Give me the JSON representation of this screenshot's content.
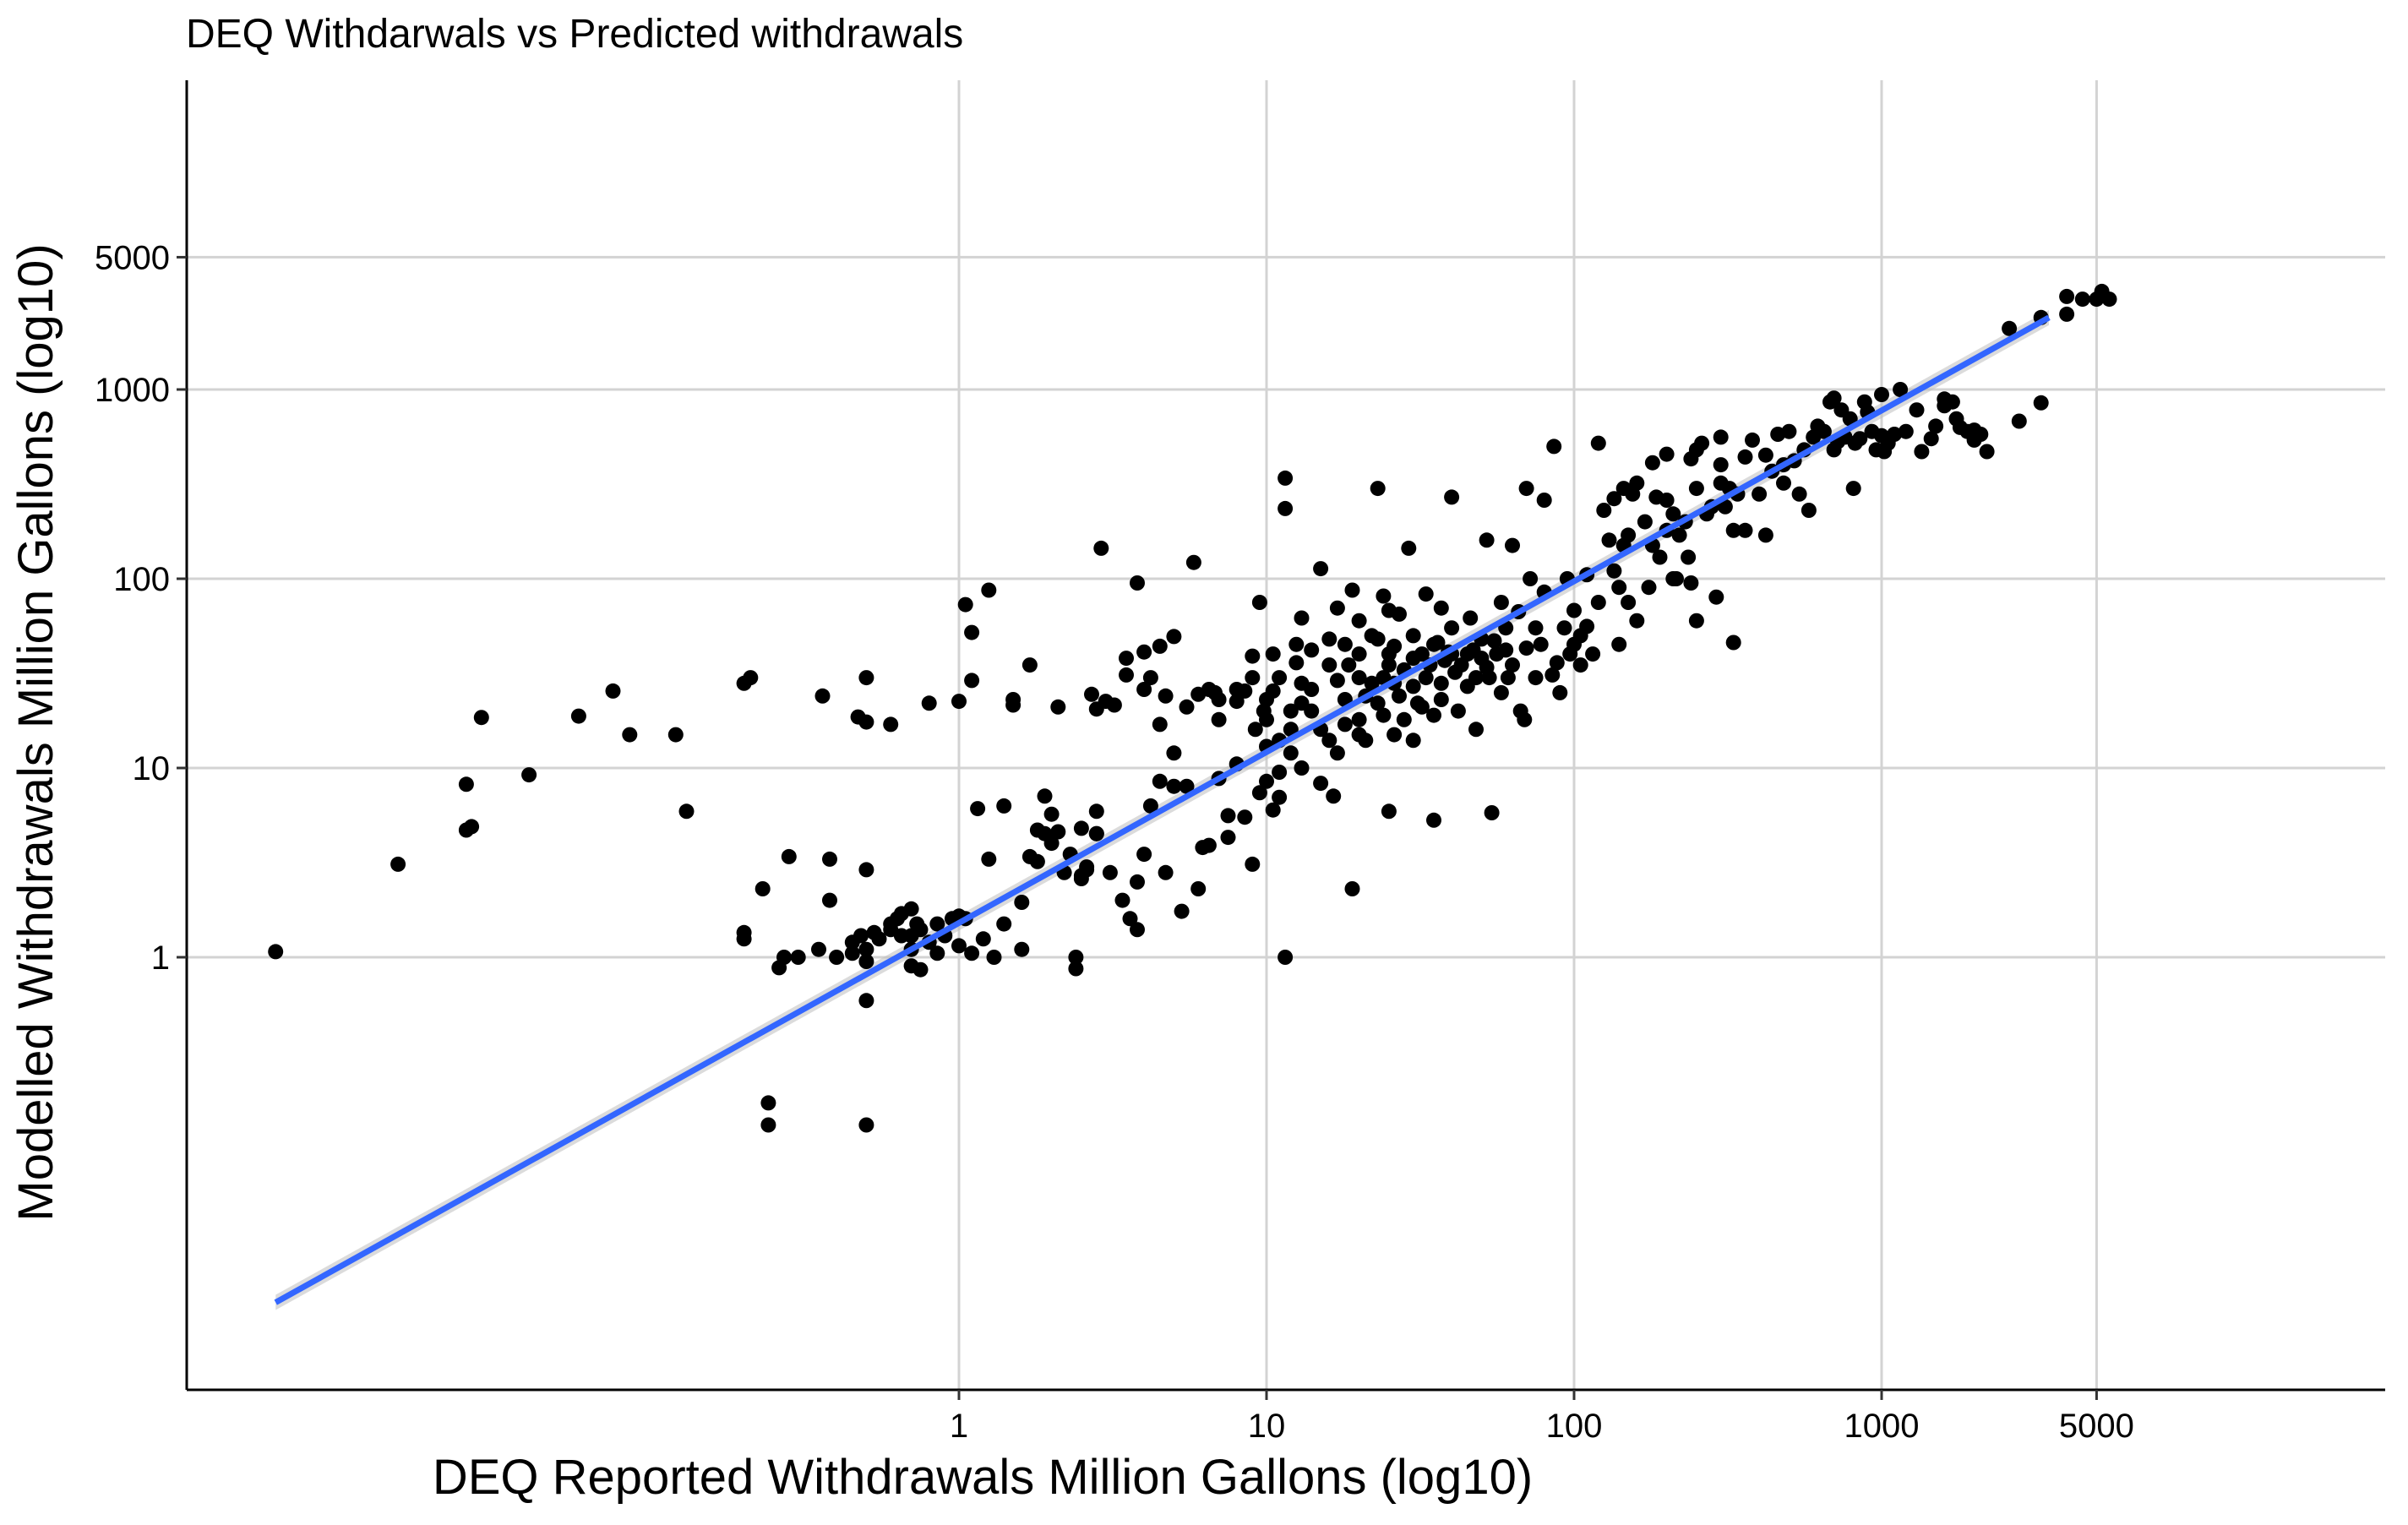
{
  "chart_data": {
    "type": "scatter",
    "title": "DEQ Withdarwals vs  Predicted withdrawals",
    "xlabel": "DEQ Reported Withdrawals Million Gallons (log10)",
    "ylabel": "Modelled Withdrawals Million Gallons  (log10)",
    "x_scale": "log10",
    "y_scale": "log10",
    "xlim": [
      0.003,
      15000
    ],
    "ylim": [
      0.005,
      12000
    ],
    "x_ticks": [
      {
        "value": 1,
        "label": "1"
      },
      {
        "value": 10,
        "label": "10"
      },
      {
        "value": 100,
        "label": "100"
      },
      {
        "value": 1000,
        "label": "1000"
      },
      {
        "value": 5000,
        "label": "5000"
      }
    ],
    "y_ticks": [
      {
        "value": 1,
        "label": "1"
      },
      {
        "value": 10,
        "label": "10"
      },
      {
        "value": 100,
        "label": "100"
      },
      {
        "value": 1000,
        "label": "1000"
      },
      {
        "value": 5000,
        "label": "5000"
      }
    ],
    "grid": true,
    "legend": "none",
    "colors": {
      "points": "#000000",
      "fit_line": "#3366ff",
      "ribbon": "#bdbdbd",
      "grid": "#d3d3d3",
      "axis": "#000000"
    },
    "fit_line": {
      "method": "lm",
      "x": [
        0.006,
        3500
      ],
      "y": [
        0.015,
        2400
      ]
    },
    "points": [
      [
        0.006,
        1.07
      ],
      [
        0.015,
        3.1
      ],
      [
        0.025,
        8.2
      ],
      [
        0.025,
        4.7
      ],
      [
        0.026,
        4.9
      ],
      [
        0.028,
        18.5
      ],
      [
        0.04,
        9.2
      ],
      [
        0.058,
        18.8
      ],
      [
        0.075,
        25.5
      ],
      [
        0.085,
        15
      ],
      [
        0.12,
        15
      ],
      [
        0.13,
        5.9
      ],
      [
        0.2,
        1.35
      ],
      [
        0.2,
        1.25
      ],
      [
        0.2,
        28
      ],
      [
        0.21,
        30
      ],
      [
        0.23,
        2.3
      ],
      [
        0.24,
        0.17
      ],
      [
        0.24,
        0.13
      ],
      [
        0.26,
        0.88
      ],
      [
        0.27,
        1.0
      ],
      [
        0.28,
        3.4
      ],
      [
        0.3,
        1.0
      ],
      [
        0.35,
        1.1
      ],
      [
        0.36,
        24
      ],
      [
        0.38,
        3.3
      ],
      [
        0.38,
        2.0
      ],
      [
        0.4,
        1.0
      ],
      [
        0.45,
        1.05
      ],
      [
        0.45,
        1.2
      ],
      [
        0.47,
        18.6
      ],
      [
        0.48,
        1.3
      ],
      [
        0.5,
        1.1
      ],
      [
        0.5,
        0.95
      ],
      [
        0.5,
        17.5
      ],
      [
        0.5,
        30
      ],
      [
        0.5,
        2.9
      ],
      [
        0.5,
        0.59
      ],
      [
        0.5,
        0.13
      ],
      [
        0.53,
        1.35
      ],
      [
        0.55,
        1.25
      ],
      [
        0.6,
        1.5
      ],
      [
        0.6,
        1.4
      ],
      [
        0.6,
        17
      ],
      [
        0.63,
        1.6
      ],
      [
        0.65,
        1.3
      ],
      [
        0.65,
        1.7
      ],
      [
        0.7,
        1.3
      ],
      [
        0.7,
        1.8
      ],
      [
        0.7,
        1.1
      ],
      [
        0.7,
        0.9
      ],
      [
        0.73,
        1.5
      ],
      [
        0.75,
        1.4
      ],
      [
        0.75,
        0.86
      ],
      [
        0.8,
        1.2
      ],
      [
        0.8,
        22
      ],
      [
        0.85,
        1.5
      ],
      [
        0.85,
        1.05
      ],
      [
        0.9,
        1.3
      ],
      [
        0.95,
        1.6
      ],
      [
        1.0,
        22.5
      ],
      [
        1.0,
        1.65
      ],
      [
        1.0,
        1.15
      ],
      [
        1.05,
        73
      ],
      [
        1.05,
        1.6
      ],
      [
        1.1,
        29
      ],
      [
        1.1,
        52
      ],
      [
        1.1,
        1.05
      ],
      [
        1.15,
        6.1
      ],
      [
        1.2,
        1.25
      ],
      [
        1.25,
        87
      ],
      [
        1.25,
        3.3
      ],
      [
        1.3,
        1.0
      ],
      [
        1.4,
        1.5
      ],
      [
        1.4,
        6.3
      ],
      [
        1.5,
        23
      ],
      [
        1.5,
        21.5
      ],
      [
        1.6,
        1.95
      ],
      [
        1.6,
        1.1
      ],
      [
        1.7,
        3.4
      ],
      [
        1.7,
        35
      ],
      [
        1.8,
        4.7
      ],
      [
        1.8,
        3.2
      ],
      [
        1.9,
        7.1
      ],
      [
        1.9,
        4.5
      ],
      [
        2.0,
        5.7
      ],
      [
        2.0,
        4.0
      ],
      [
        2.1,
        4.6
      ],
      [
        2.1,
        21
      ],
      [
        2.2,
        2.8
      ],
      [
        2.3,
        3.5
      ],
      [
        2.4,
        1.0
      ],
      [
        2.4,
        0.87
      ],
      [
        2.5,
        2.7
      ],
      [
        2.5,
        2.6
      ],
      [
        2.5,
        4.8
      ],
      [
        2.6,
        3.0
      ],
      [
        2.6,
        2.9
      ],
      [
        2.7,
        24.5
      ],
      [
        2.8,
        20.5
      ],
      [
        2.8,
        4.5
      ],
      [
        2.8,
        5.9
      ],
      [
        2.8,
        4.5
      ],
      [
        2.9,
        145
      ],
      [
        3.0,
        22.5
      ],
      [
        3.1,
        2.8
      ],
      [
        3.2,
        21.5
      ],
      [
        3.4,
        2.0
      ],
      [
        3.5,
        31
      ],
      [
        3.5,
        38
      ],
      [
        3.6,
        1.6
      ],
      [
        3.8,
        95
      ],
      [
        3.8,
        1.4
      ],
      [
        3.8,
        2.5
      ],
      [
        4.0,
        3.5
      ],
      [
        4.0,
        41
      ],
      [
        4.0,
        26
      ],
      [
        4.2,
        6.3
      ],
      [
        4.2,
        30
      ],
      [
        4.5,
        8.5
      ],
      [
        4.5,
        17
      ],
      [
        4.5,
        44
      ],
      [
        4.7,
        24
      ],
      [
        4.7,
        2.8
      ],
      [
        5.0,
        8.0
      ],
      [
        5.0,
        49.5
      ],
      [
        5.0,
        12
      ],
      [
        5.3,
        1.75
      ],
      [
        5.5,
        21
      ],
      [
        5.5,
        8
      ],
      [
        5.8,
        122
      ],
      [
        6.0,
        24.5
      ],
      [
        6.0,
        2.3
      ],
      [
        6.2,
        3.8
      ],
      [
        6.5,
        26
      ],
      [
        6.5,
        3.9
      ],
      [
        6.8,
        25
      ],
      [
        7.0,
        8.8
      ],
      [
        7.0,
        18
      ],
      [
        7.0,
        23
      ],
      [
        7.5,
        4.3
      ],
      [
        7.5,
        5.6
      ],
      [
        8.0,
        22.5
      ],
      [
        8.0,
        26
      ],
      [
        8.0,
        10.5
      ],
      [
        8.5,
        5.5
      ],
      [
        8.5,
        25.5
      ],
      [
        9.0,
        3.1
      ],
      [
        9.0,
        39
      ],
      [
        9.0,
        30
      ],
      [
        9.2,
        16
      ],
      [
        9.5,
        7.4
      ],
      [
        9.5,
        75
      ],
      [
        9.8,
        20
      ],
      [
        10,
        13
      ],
      [
        10,
        18
      ],
      [
        10,
        23
      ],
      [
        10,
        8.5
      ],
      [
        10.5,
        40
      ],
      [
        10.5,
        6.0
      ],
      [
        10.5,
        25.5
      ],
      [
        11,
        30
      ],
      [
        11,
        9.5
      ],
      [
        11,
        7.0
      ],
      [
        11,
        14
      ],
      [
        11.5,
        340
      ],
      [
        11.5,
        1.0
      ],
      [
        11.5,
        235
      ],
      [
        12,
        12
      ],
      [
        12,
        16
      ],
      [
        12,
        20
      ],
      [
        12.5,
        36
      ],
      [
        12.5,
        45
      ],
      [
        13,
        22
      ],
      [
        13,
        10
      ],
      [
        13,
        62
      ],
      [
        13,
        28
      ],
      [
        14,
        42
      ],
      [
        14,
        26
      ],
      [
        14,
        20
      ],
      [
        15,
        113
      ],
      [
        15,
        8.3
      ],
      [
        15,
        16
      ],
      [
        16,
        48
      ],
      [
        16,
        35
      ],
      [
        16,
        14
      ],
      [
        16.5,
        7.1
      ],
      [
        17,
        70
      ],
      [
        17,
        29
      ],
      [
        17,
        12
      ],
      [
        18,
        45
      ],
      [
        18,
        23
      ],
      [
        18,
        17
      ],
      [
        18.5,
        35
      ],
      [
        19,
        87
      ],
      [
        19,
        2.3
      ],
      [
        20,
        18
      ],
      [
        20,
        40
      ],
      [
        20,
        60
      ],
      [
        20,
        30
      ],
      [
        20,
        15
      ],
      [
        21,
        24
      ],
      [
        21,
        14
      ],
      [
        22,
        28
      ],
      [
        22,
        50
      ],
      [
        23,
        300
      ],
      [
        23,
        48
      ],
      [
        23,
        22
      ],
      [
        24,
        81
      ],
      [
        24,
        30
      ],
      [
        24,
        19
      ],
      [
        25,
        40
      ],
      [
        25,
        68
      ],
      [
        25,
        35
      ],
      [
        25,
        5.9
      ],
      [
        26,
        28
      ],
      [
        26,
        44
      ],
      [
        26,
        15
      ],
      [
        27,
        65
      ],
      [
        27,
        24
      ],
      [
        28,
        33
      ],
      [
        28,
        18
      ],
      [
        29,
        145
      ],
      [
        30,
        50
      ],
      [
        30,
        27
      ],
      [
        30,
        38
      ],
      [
        30,
        14
      ],
      [
        31,
        22
      ],
      [
        32,
        21
      ],
      [
        32,
        40
      ],
      [
        33,
        83
      ],
      [
        33,
        30
      ],
      [
        34,
        35
      ],
      [
        35,
        19
      ],
      [
        35,
        45
      ],
      [
        35,
        5.3
      ],
      [
        36,
        46
      ],
      [
        37,
        28
      ],
      [
        37,
        23
      ],
      [
        37,
        70
      ],
      [
        38,
        37
      ],
      [
        39,
        41
      ],
      [
        40,
        40
      ],
      [
        40,
        55
      ],
      [
        40,
        270
      ],
      [
        41,
        32
      ],
      [
        42,
        20
      ],
      [
        43,
        35
      ],
      [
        45,
        40
      ],
      [
        45,
        27
      ],
      [
        46,
        62
      ],
      [
        47,
        42
      ],
      [
        48,
        16
      ],
      [
        48,
        30
      ],
      [
        50,
        38
      ],
      [
        50,
        48
      ],
      [
        52,
        34
      ],
      [
        52,
        160
      ],
      [
        53,
        30
      ],
      [
        54,
        5.8
      ],
      [
        55,
        47
      ],
      [
        56,
        40
      ],
      [
        58,
        25
      ],
      [
        58,
        75
      ],
      [
        60,
        55
      ],
      [
        60,
        42
      ],
      [
        61,
        30
      ],
      [
        63,
        35
      ],
      [
        63,
        150
      ],
      [
        66,
        67
      ],
      [
        67,
        20
      ],
      [
        69,
        18
      ],
      [
        70,
        43
      ],
      [
        70,
        300
      ],
      [
        72,
        100
      ],
      [
        75,
        30
      ],
      [
        75,
        55
      ],
      [
        78,
        45
      ],
      [
        80,
        260
      ],
      [
        80,
        85
      ],
      [
        85,
        31
      ],
      [
        86,
        500
      ],
      [
        88,
        36
      ],
      [
        90,
        25
      ],
      [
        93,
        55
      ],
      [
        95,
        100
      ],
      [
        97,
        40
      ],
      [
        100,
        45
      ],
      [
        100,
        68
      ],
      [
        105,
        35
      ],
      [
        105,
        50
      ],
      [
        110,
        56
      ],
      [
        110,
        105
      ],
      [
        115,
        40
      ],
      [
        120,
        75
      ],
      [
        120,
        520
      ],
      [
        125,
        230
      ],
      [
        130,
        160
      ],
      [
        135,
        110
      ],
      [
        135,
        265
      ],
      [
        140,
        45
      ],
      [
        140,
        90
      ],
      [
        145,
        150
      ],
      [
        145,
        300
      ],
      [
        150,
        170
      ],
      [
        150,
        75
      ],
      [
        155,
        280
      ],
      [
        160,
        60
      ],
      [
        160,
        320
      ],
      [
        170,
        200
      ],
      [
        175,
        90
      ],
      [
        180,
        410
      ],
      [
        180,
        150
      ],
      [
        185,
        270
      ],
      [
        190,
        130
      ],
      [
        200,
        455
      ],
      [
        200,
        180
      ],
      [
        200,
        260
      ],
      [
        210,
        100
      ],
      [
        210,
        220
      ],
      [
        215,
        100
      ],
      [
        220,
        170
      ],
      [
        230,
        200
      ],
      [
        235,
        130
      ],
      [
        240,
        430
      ],
      [
        240,
        95
      ],
      [
        250,
        300
      ],
      [
        250,
        480
      ],
      [
        250,
        60
      ],
      [
        260,
        520
      ],
      [
        270,
        220
      ],
      [
        280,
        240
      ],
      [
        290,
        80
      ],
      [
        300,
        320
      ],
      [
        300,
        400
      ],
      [
        300,
        560
      ],
      [
        310,
        240
      ],
      [
        320,
        300
      ],
      [
        330,
        180
      ],
      [
        330,
        46
      ],
      [
        340,
        280
      ],
      [
        360,
        180
      ],
      [
        360,
        440
      ],
      [
        380,
        540
      ],
      [
        400,
        280
      ],
      [
        420,
        170
      ],
      [
        420,
        450
      ],
      [
        440,
        370
      ],
      [
        460,
        580
      ],
      [
        480,
        400
      ],
      [
        480,
        320
      ],
      [
        500,
        600
      ],
      [
        520,
        420
      ],
      [
        540,
        280
      ],
      [
        560,
        480
      ],
      [
        580,
        230
      ],
      [
        600,
        560
      ],
      [
        620,
        640
      ],
      [
        650,
        600
      ],
      [
        680,
        860
      ],
      [
        700,
        480
      ],
      [
        700,
        900
      ],
      [
        720,
        530
      ],
      [
        740,
        780
      ],
      [
        760,
        560
      ],
      [
        790,
        700
      ],
      [
        810,
        300
      ],
      [
        820,
        520
      ],
      [
        850,
        550
      ],
      [
        880,
        860
      ],
      [
        900,
        760
      ],
      [
        930,
        600
      ],
      [
        960,
        480
      ],
      [
        1000,
        570
      ],
      [
        1000,
        940
      ],
      [
        1020,
        470
      ],
      [
        1050,
        520
      ],
      [
        1100,
        580
      ],
      [
        1150,
        1000
      ],
      [
        1200,
        600
      ],
      [
        1300,
        780
      ],
      [
        1350,
        470
      ],
      [
        1450,
        550
      ],
      [
        1500,
        640
      ],
      [
        1600,
        890
      ],
      [
        1600,
        820
      ],
      [
        1700,
        860
      ],
      [
        1750,
        700
      ],
      [
        1800,
        630
      ],
      [
        1900,
        600
      ],
      [
        2000,
        610
      ],
      [
        2000,
        540
      ],
      [
        2100,
        580
      ],
      [
        2200,
        470
      ],
      [
        2800,
        680
      ],
      [
        3300,
        850
      ],
      [
        2600,
        2100
      ],
      [
        3300,
        2400
      ],
      [
        4000,
        2500
      ],
      [
        4000,
        3100
      ],
      [
        4500,
        3000
      ],
      [
        5000,
        3000
      ],
      [
        5200,
        3300
      ],
      [
        5500,
        3000
      ]
    ]
  }
}
